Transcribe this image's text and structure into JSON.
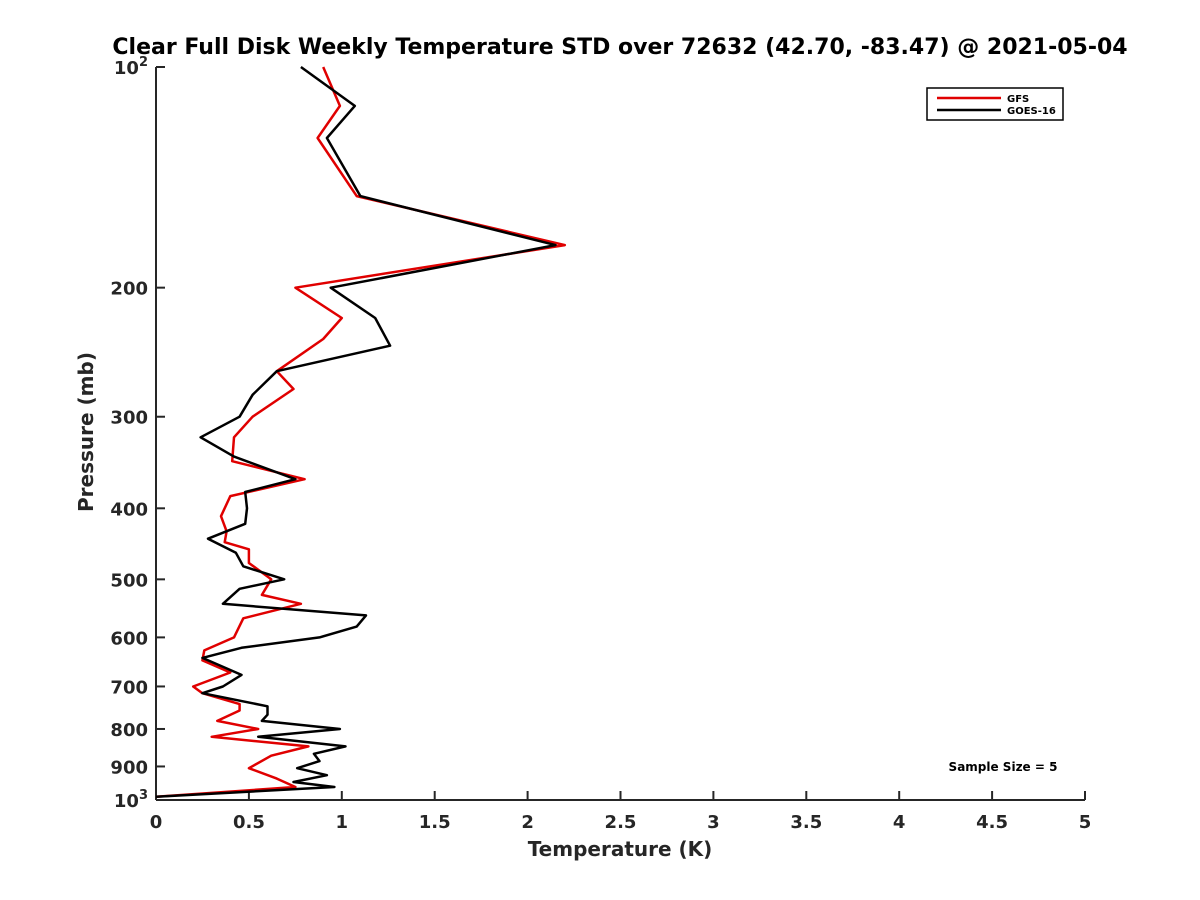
{
  "chart_data": {
    "type": "line",
    "title": "Clear Full Disk Weekly Temperature STD over 72632 (42.70, -83.47) @ 2021-05-04",
    "xlabel": "Temperature (K)",
    "ylabel": "Pressure (mb)",
    "xlim": [
      0,
      5
    ],
    "ylim": [
      100,
      1000
    ],
    "y_scale": "log",
    "y_reversed": true,
    "x_ticks": [
      "0",
      "0.5",
      "1",
      "1.5",
      "2",
      "2.5",
      "3",
      "3.5",
      "4",
      "4.5",
      "5"
    ],
    "y_ticks": [
      {
        "value": 100,
        "base": "10",
        "exp": "2"
      },
      {
        "value": 200,
        "label": "200"
      },
      {
        "value": 300,
        "label": "300"
      },
      {
        "value": 400,
        "label": "400"
      },
      {
        "value": 500,
        "label": "500"
      },
      {
        "value": 600,
        "label": "600"
      },
      {
        "value": 700,
        "label": "700"
      },
      {
        "value": 800,
        "label": "800"
      },
      {
        "value": 900,
        "label": "900"
      },
      {
        "value": 1000,
        "base": "10",
        "exp": "3"
      }
    ],
    "legend_position": "top-right",
    "grid": false,
    "annotation": "Sample Size = 5",
    "series": [
      {
        "name": "GFS",
        "color": "#e00000",
        "points": [
          [
            0.9,
            100
          ],
          [
            0.99,
            113
          ],
          [
            0.87,
            125
          ],
          [
            1.08,
            150
          ],
          [
            2.2,
            175
          ],
          [
            0.75,
            200
          ],
          [
            1.0,
            220
          ],
          [
            0.9,
            235
          ],
          [
            0.65,
            260
          ],
          [
            0.74,
            275
          ],
          [
            0.52,
            300
          ],
          [
            0.42,
            320
          ],
          [
            0.41,
            345
          ],
          [
            0.8,
            365
          ],
          [
            0.4,
            385
          ],
          [
            0.35,
            410
          ],
          [
            0.38,
            430
          ],
          [
            0.37,
            445
          ],
          [
            0.5,
            455
          ],
          [
            0.5,
            475
          ],
          [
            0.62,
            500
          ],
          [
            0.57,
            525
          ],
          [
            0.78,
            540
          ],
          [
            0.47,
            565
          ],
          [
            0.42,
            600
          ],
          [
            0.26,
            625
          ],
          [
            0.25,
            645
          ],
          [
            0.4,
            670
          ],
          [
            0.2,
            700
          ],
          [
            0.25,
            715
          ],
          [
            0.45,
            740
          ],
          [
            0.45,
            755
          ],
          [
            0.33,
            780
          ],
          [
            0.55,
            800
          ],
          [
            0.3,
            820
          ],
          [
            0.82,
            845
          ],
          [
            0.62,
            870
          ],
          [
            0.5,
            905
          ],
          [
            0.65,
            935
          ],
          [
            0.75,
            960
          ],
          [
            0.0,
            990
          ]
        ]
      },
      {
        "name": "GOES-16",
        "color": "#000000",
        "points": [
          [
            0.78,
            100
          ],
          [
            1.07,
            113
          ],
          [
            0.92,
            125
          ],
          [
            1.1,
            150
          ],
          [
            2.15,
            175
          ],
          [
            0.94,
            200
          ],
          [
            1.18,
            220
          ],
          [
            1.26,
            240
          ],
          [
            0.65,
            260
          ],
          [
            0.52,
            280
          ],
          [
            0.45,
            300
          ],
          [
            0.24,
            320
          ],
          [
            0.42,
            340
          ],
          [
            0.75,
            365
          ],
          [
            0.48,
            380
          ],
          [
            0.49,
            400
          ],
          [
            0.48,
            420
          ],
          [
            0.28,
            440
          ],
          [
            0.43,
            460
          ],
          [
            0.47,
            480
          ],
          [
            0.69,
            500
          ],
          [
            0.45,
            515
          ],
          [
            0.36,
            540
          ],
          [
            1.13,
            560
          ],
          [
            1.08,
            580
          ],
          [
            0.88,
            600
          ],
          [
            0.46,
            620
          ],
          [
            0.25,
            640
          ],
          [
            0.46,
            675
          ],
          [
            0.36,
            700
          ],
          [
            0.25,
            715
          ],
          [
            0.6,
            745
          ],
          [
            0.6,
            765
          ],
          [
            0.57,
            780
          ],
          [
            0.99,
            800
          ],
          [
            0.55,
            820
          ],
          [
            1.02,
            845
          ],
          [
            0.85,
            865
          ],
          [
            0.88,
            885
          ],
          [
            0.76,
            905
          ],
          [
            0.92,
            925
          ],
          [
            0.74,
            945
          ],
          [
            0.96,
            960
          ],
          [
            0.0,
            990
          ]
        ]
      }
    ]
  }
}
